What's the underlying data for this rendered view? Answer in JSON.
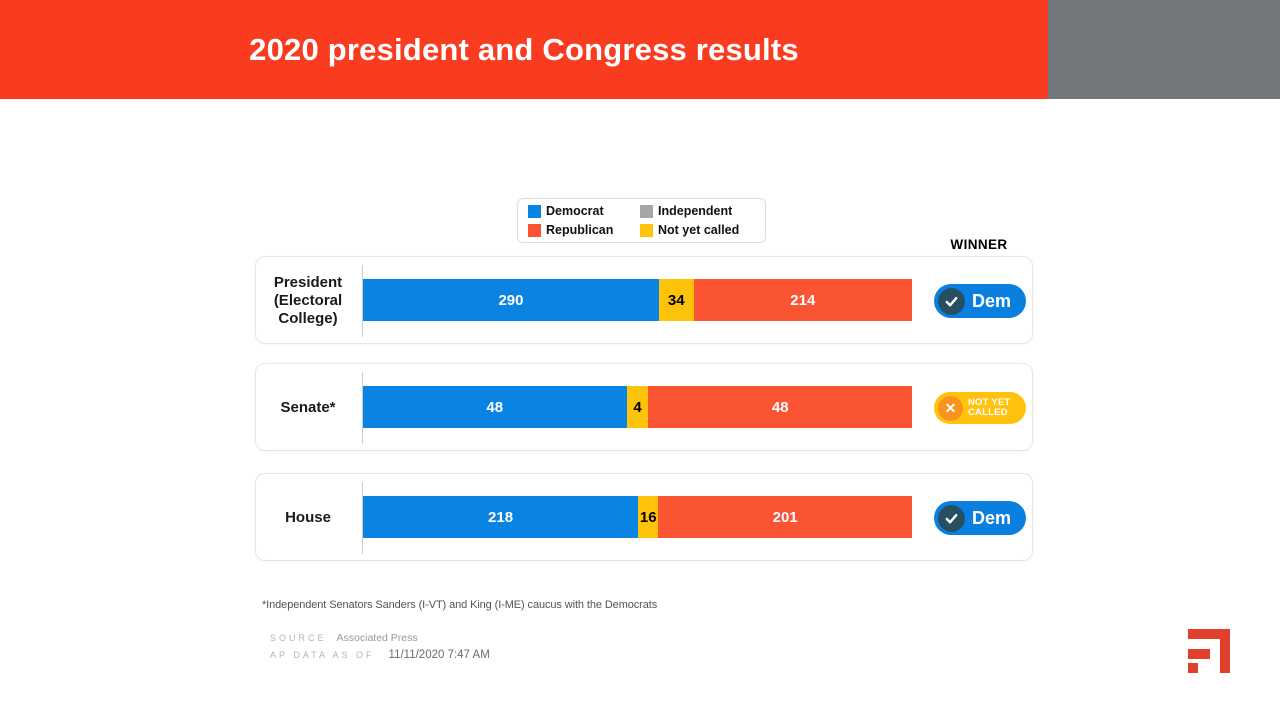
{
  "header": {
    "title": "2020 president and Congress results",
    "bar_color": "#f93b20",
    "gray_box_color": "#737779"
  },
  "winner_label": "WINNER",
  "chart_data": {
    "type": "bar",
    "orientation": "horizontal-stacked",
    "title": "2020 president and Congress results",
    "legend": [
      {
        "label": "Democrat",
        "party": "democrat"
      },
      {
        "label": "Independent",
        "party": "independent"
      },
      {
        "label": "Republican",
        "party": "republican"
      },
      {
        "label": "Not yet called",
        "party": "not_yet_called"
      }
    ],
    "colors": {
      "democrat": {
        "fill": "#0a84e2",
        "text": "#ffffff"
      },
      "republican": {
        "fill": "#fa5433",
        "text": "#ffffff"
      },
      "independent": {
        "fill": "#a7a5a6",
        "text": "#ffffff"
      },
      "not_yet_called": {
        "fill": "#fdc30a",
        "text": "#000000"
      }
    },
    "rows": [
      {
        "category": "President (Electoral College)",
        "total": 538,
        "segments": [
          {
            "party": "democrat",
            "value": 290
          },
          {
            "party": "not_yet_called",
            "value": 34
          },
          {
            "party": "republican",
            "value": 214
          }
        ],
        "winner": {
          "type": "dem",
          "label": "Dem",
          "icon": "check"
        }
      },
      {
        "category": "Senate*",
        "total": 100,
        "segments": [
          {
            "party": "democrat",
            "value": 48
          },
          {
            "party": "not_yet_called",
            "value": 4
          },
          {
            "party": "republican",
            "value": 48
          }
        ],
        "winner": {
          "type": "not_yet_called",
          "label": "NOT YET CALLED",
          "icon": "x"
        }
      },
      {
        "category": "House",
        "total": 435,
        "segments": [
          {
            "party": "democrat",
            "value": 218
          },
          {
            "party": "not_yet_called",
            "value": 16
          },
          {
            "party": "republican",
            "value": 201
          }
        ],
        "winner": {
          "type": "dem",
          "label": "Dem",
          "icon": "check"
        }
      }
    ]
  },
  "badge_colors": {
    "dem_pill": "#0b7fe0",
    "dem_circle": "#265061",
    "nyc_pill": "#ffc20e",
    "nyc_circle": "#f7941e"
  },
  "footnote": "*Independent Senators Sanders (I-VT) and King (I-ME) caucus with the Democrats",
  "source": {
    "label": "SOURCE",
    "value": "Associated Press"
  },
  "data_as_of": {
    "label": "AP DATA AS OF",
    "value": "11/11/2020 7:47 AM"
  },
  "logo": {
    "name": "corner-bars-logo",
    "color": "#e2402d"
  }
}
